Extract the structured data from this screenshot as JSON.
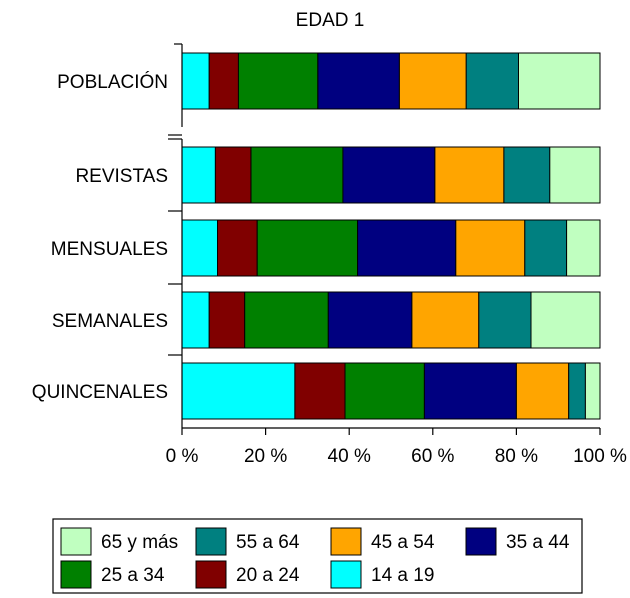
{
  "chart_data": {
    "type": "bar",
    "orientation": "horizontal",
    "stacked": "percent",
    "title": "EDAD 1",
    "categories": [
      "POBLACIÓN",
      "REVISTAS",
      "MENSUALES",
      "SEMANALES",
      "QUINCENALES"
    ],
    "xlim": [
      0,
      100
    ],
    "x_ticks": [
      "0 %",
      "20 %",
      "40 %",
      "60 %",
      "80 %",
      "100 %"
    ],
    "grid": false,
    "legend_position": "bottom",
    "series": [
      {
        "name": "14 a 19",
        "color": "#00ffff",
        "values": [
          6.5,
          8.0,
          8.5,
          6.5,
          27.0
        ]
      },
      {
        "name": "20 a 24",
        "color": "#800000",
        "values": [
          7.0,
          8.5,
          9.5,
          8.5,
          12.0
        ]
      },
      {
        "name": "25 a 34",
        "color": "#008000",
        "values": [
          19.0,
          22.0,
          24.0,
          20.0,
          19.0
        ]
      },
      {
        "name": "35 a 44",
        "color": "#000080",
        "values": [
          19.5,
          22.0,
          23.5,
          20.0,
          22.0
        ]
      },
      {
        "name": "45 a 54",
        "color": "#ffa500",
        "values": [
          16.0,
          16.5,
          16.5,
          16.0,
          12.5
        ]
      },
      {
        "name": "55 a 64",
        "color": "#008080",
        "values": [
          12.5,
          11.0,
          10.0,
          12.5,
          4.0
        ]
      },
      {
        "name": "65 y más",
        "color": "#c0ffc0",
        "values": [
          19.5,
          12.0,
          8.0,
          16.5,
          3.5
        ]
      }
    ],
    "legend_order": [
      "65 y más",
      "55 a 64",
      "45 a 54",
      "35 a 44",
      "25 a 34",
      "20 a 24",
      "14 a 19"
    ]
  }
}
